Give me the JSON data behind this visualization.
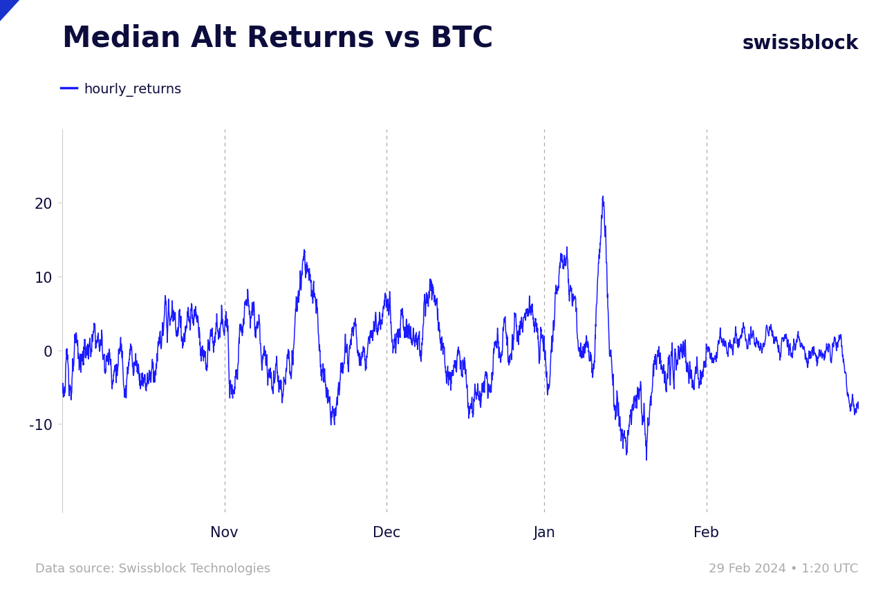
{
  "title": "Median Alt Returns vs BTC",
  "legend_label": "hourly_returns",
  "source_text": "Data source: Swissblock Technologies",
  "date_text": "29 Feb 2024 • 1:20 UTC",
  "swissblock_text": "swissblock",
  "line_color": "#1a1aff",
  "title_color": "#0d0d3d",
  "tick_color": "#0d0d3d",
  "footer_color": "#aaaaaa",
  "background_color": "#ffffff",
  "yticks": [
    -10,
    0,
    10,
    20
  ],
  "ylim": [
    -22,
    30
  ],
  "x_tick_labels": [
    "Nov",
    "Dec",
    "Jan",
    "Feb"
  ],
  "x_tick_positions": [
    744,
    1488,
    2208,
    2952
  ],
  "vline_positions": [
    744,
    1488,
    2208,
    2952
  ],
  "line_width": 1.1,
  "title_fontsize": 30,
  "tick_fontsize": 15,
  "legend_fontsize": 14,
  "footer_fontsize": 13,
  "swissblock_fontsize": 20,
  "figsize": [
    12.8,
    8.53
  ],
  "dpi": 100,
  "n_points": 3648
}
